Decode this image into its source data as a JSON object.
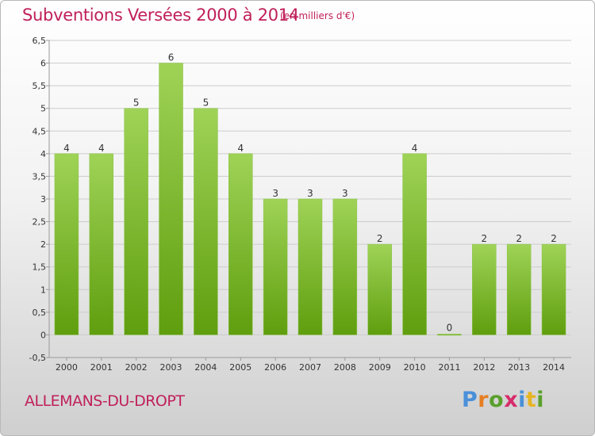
{
  "header": {
    "title": "Subventions Versées 2000 à 2014",
    "unit": "(en milliers d'€)"
  },
  "footer": {
    "commune": "ALLEMANS-DU-DROPT",
    "logo_text": "Proxiti",
    "logo_colors": [
      "#4a90d9",
      "#e67e22",
      "#5aa02c",
      "#d62c6b",
      "#4a90d9",
      "#e6b422",
      "#5aa02c"
    ]
  },
  "colors": {
    "bar_light": "#9fd357",
    "bar_dark": "#5f9e0e",
    "grid": "#cccccc",
    "axis_text": "#333333",
    "title": "#c0205a"
  },
  "chart_data": {
    "type": "bar",
    "categories": [
      "2000",
      "2001",
      "2002",
      "2003",
      "2004",
      "2005",
      "2006",
      "2007",
      "2008",
      "2009",
      "2010",
      "2011",
      "2012",
      "2013",
      "2014"
    ],
    "values": [
      4,
      4,
      5,
      6,
      5,
      4,
      3,
      3,
      3,
      2,
      4,
      0,
      2,
      2,
      2
    ],
    "data_labels": [
      "4",
      "4",
      "5",
      "6",
      "5",
      "4",
      "3",
      "3",
      "3",
      "2",
      "4",
      "0",
      "2",
      "2",
      "2"
    ],
    "ylim": [
      -0.5,
      6.5
    ],
    "yticks": [
      "-0,5",
      "0",
      "0,5",
      "1",
      "1,5",
      "2",
      "2,5",
      "3",
      "3,5",
      "4",
      "4,5",
      "5",
      "5,5",
      "6",
      "6,5"
    ],
    "ytick_values": [
      -0.5,
      0,
      0.5,
      1,
      1.5,
      2,
      2.5,
      3,
      3.5,
      4,
      4.5,
      5,
      5.5,
      6,
      6.5
    ],
    "grid": true,
    "title": "Subventions Versées 2000 à 2014",
    "xlabel": "",
    "ylabel": ""
  }
}
